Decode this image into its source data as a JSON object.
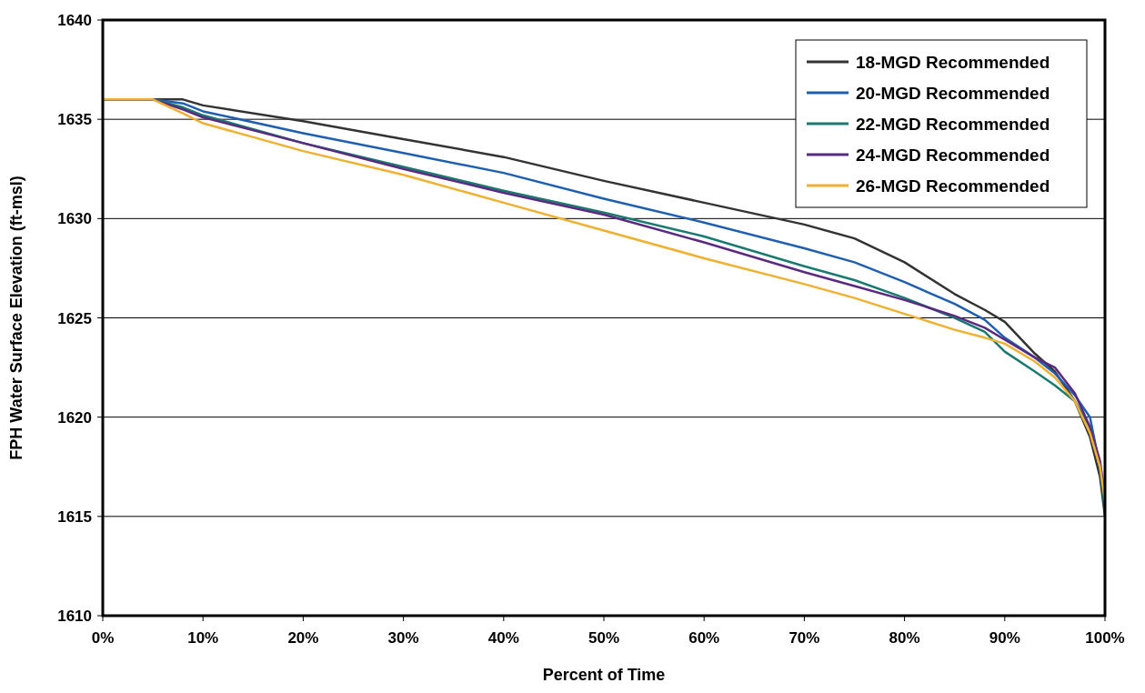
{
  "chart_data": {
    "type": "line",
    "xlabel": "Percent of Time",
    "ylabel": "FPH Water Surface Elevation (ft-msl)",
    "xlim": [
      0,
      100
    ],
    "ylim": [
      1610,
      1640
    ],
    "xticks": [
      {
        "value": 0,
        "label": "0%"
      },
      {
        "value": 10,
        "label": "10%"
      },
      {
        "value": 20,
        "label": "20%"
      },
      {
        "value": 30,
        "label": "30%"
      },
      {
        "value": 40,
        "label": "40%"
      },
      {
        "value": 50,
        "label": "50%"
      },
      {
        "value": 60,
        "label": "60%"
      },
      {
        "value": 70,
        "label": "70%"
      },
      {
        "value": 80,
        "label": "80%"
      },
      {
        "value": 90,
        "label": "90%"
      },
      {
        "value": 100,
        "label": "100%"
      }
    ],
    "yticks": [
      1610,
      1615,
      1620,
      1625,
      1630,
      1635,
      1640
    ],
    "grid": "y",
    "legend": "top right",
    "line_style": "solid",
    "x": [
      0,
      5,
      8,
      10,
      20,
      30,
      40,
      50,
      60,
      70,
      75,
      80,
      85,
      88,
      90,
      93,
      95,
      97,
      98.5,
      99.5,
      100
    ],
    "series": [
      {
        "name": "18-MGD Recommended",
        "color": "#333333",
        "values": [
          1636,
          1636,
          1636,
          1635.7,
          1634.9,
          1634.0,
          1633.1,
          1631.9,
          1630.8,
          1629.7,
          1629.0,
          1627.8,
          1626.2,
          1625.4,
          1624.8,
          1623.2,
          1622.3,
          1620.8,
          1619.0,
          1617.0,
          1615.0
        ]
      },
      {
        "name": "20-MGD Recommended",
        "color": "#1f5fb0",
        "values": [
          1636,
          1636,
          1635.8,
          1635.4,
          1634.3,
          1633.3,
          1632.3,
          1631.0,
          1629.8,
          1628.5,
          1627.8,
          1626.8,
          1625.7,
          1624.9,
          1624.0,
          1623.0,
          1622.2,
          1621.1,
          1620.0,
          1617.5,
          1615.5
        ]
      },
      {
        "name": "22-MGD Recommended",
        "color": "#1a7a70",
        "values": [
          1636,
          1636,
          1635.6,
          1635.2,
          1633.8,
          1632.6,
          1631.4,
          1630.3,
          1629.1,
          1627.6,
          1626.9,
          1626.0,
          1625.0,
          1624.3,
          1623.3,
          1622.3,
          1621.6,
          1620.8,
          1619.5,
          1617.5,
          1615.3
        ]
      },
      {
        "name": "24-MGD Recommended",
        "color": "#5a2a80",
        "values": [
          1636,
          1636,
          1635.5,
          1635.1,
          1633.8,
          1632.5,
          1631.3,
          1630.2,
          1628.8,
          1627.3,
          1626.6,
          1625.9,
          1625.1,
          1624.5,
          1623.9,
          1623.0,
          1622.5,
          1621.2,
          1619.5,
          1617.8,
          1616.0
        ]
      },
      {
        "name": "26-MGD Recommended",
        "color": "#f0b030",
        "values": [
          1636,
          1636,
          1635.3,
          1634.8,
          1633.4,
          1632.2,
          1630.8,
          1629.4,
          1628.0,
          1626.7,
          1626.0,
          1625.2,
          1624.4,
          1624.0,
          1623.7,
          1622.8,
          1622.0,
          1620.8,
          1619.2,
          1617.5,
          1615.8
        ]
      }
    ]
  }
}
